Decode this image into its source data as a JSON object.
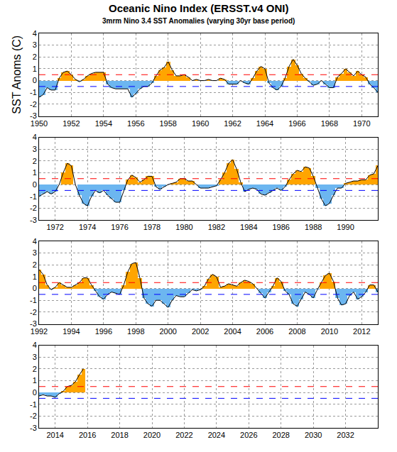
{
  "chart_data": [
    {
      "type": "area",
      "title": "Oceanic Nino Index (ERSST.v4 ONI)",
      "subtitle": "3mrm Nino 3.4 SST Anomalies (varying 30yr base period)",
      "y_label": "SST Anoms (C)",
      "x": [
        1950,
        1950.25,
        1950.5,
        1950.75,
        1951,
        1951.25,
        1951.5,
        1951.75,
        1952,
        1952.25,
        1952.5,
        1952.75,
        1953,
        1953.25,
        1953.5,
        1953.75,
        1954,
        1954.25,
        1954.5,
        1954.75,
        1955,
        1955.25,
        1955.5,
        1955.75,
        1956,
        1956.25,
        1956.5,
        1956.75,
        1957,
        1957.25,
        1957.5,
        1957.75,
        1958,
        1958.25,
        1958.5,
        1958.75,
        1959,
        1959.25,
        1959.5,
        1959.75,
        1960,
        1960.25,
        1960.5,
        1960.75,
        1961,
        1961.25,
        1961.5,
        1961.75,
        1962,
        1962.25,
        1962.5,
        1962.75,
        1963,
        1963.25,
        1963.5,
        1963.75,
        1964,
        1964.25,
        1964.5,
        1964.75,
        1965,
        1965.25,
        1965.5,
        1965.75,
        1966,
        1966.25,
        1966.5,
        1966.75,
        1967,
        1967.25,
        1967.5,
        1967.75,
        1968,
        1968.25,
        1968.5,
        1968.75,
        1969,
        1969.25,
        1969.5,
        1969.75,
        1970,
        1970.25,
        1970.5,
        1970.75,
        1971
      ],
      "values": [
        -1.4,
        -1.2,
        -0.6,
        -0.8,
        -0.8,
        0.2,
        0.7,
        0.8,
        0.5,
        0.1,
        -0.1,
        0.1,
        0.4,
        0.6,
        0.7,
        0.7,
        0.7,
        -0.3,
        -0.6,
        -0.7,
        -0.7,
        -0.7,
        -0.7,
        -1.4,
        -1.1,
        -0.7,
        -0.5,
        -0.5,
        -0.2,
        0.4,
        0.9,
        1.1,
        1.6,
        0.9,
        0.4,
        0.4,
        0.5,
        0.3,
        0.0,
        0.1,
        0.0,
        0.0,
        0.1,
        0.0,
        0.0,
        0.2,
        0.1,
        -0.3,
        -0.3,
        -0.3,
        0.0,
        -0.2,
        -0.3,
        0.2,
        0.8,
        1.2,
        1.0,
        -0.2,
        -0.6,
        -0.8,
        -0.5,
        0.2,
        1.2,
        1.8,
        1.3,
        0.6,
        0.2,
        -0.1,
        -0.4,
        -0.3,
        0.0,
        -0.3,
        -0.6,
        -0.6,
        0.3,
        0.6,
        1.0,
        0.7,
        0.4,
        0.8,
        0.5,
        0.3,
        -0.3,
        -0.6,
        -1.0
      ],
      "color": "#000000",
      "colors": {
        "above": "#ffa500",
        "below": "#6cb6f0"
      },
      "reference_lines": [
        {
          "value": 0.5,
          "color": "#ff0000",
          "line_style": "dash"
        },
        {
          "value": -0.5,
          "color": "#0000ff",
          "line_style": "dash"
        }
      ],
      "xlim": [
        1950,
        1971
      ],
      "xticks": [
        1950,
        1952,
        1954,
        1956,
        1958,
        1960,
        1962,
        1964,
        1966,
        1968,
        1970
      ],
      "ylim": [
        -3,
        4
      ],
      "yticks": [
        -3,
        -2,
        -1,
        0,
        1,
        2,
        3,
        4
      ],
      "grid": true
    },
    {
      "type": "area",
      "x": [
        1971,
        1971.25,
        1971.5,
        1971.75,
        1972,
        1972.25,
        1972.5,
        1972.75,
        1973,
        1973.25,
        1973.5,
        1973.75,
        1974,
        1974.25,
        1974.5,
        1974.75,
        1975,
        1975.25,
        1975.5,
        1975.75,
        1976,
        1976.25,
        1976.5,
        1976.75,
        1977,
        1977.25,
        1977.5,
        1977.75,
        1978,
        1978.25,
        1978.5,
        1978.75,
        1979,
        1979.25,
        1979.5,
        1979.75,
        1980,
        1980.25,
        1980.5,
        1980.75,
        1981,
        1981.25,
        1981.5,
        1981.75,
        1982,
        1982.25,
        1982.5,
        1982.75,
        1983,
        1983.25,
        1983.5,
        1983.75,
        1984,
        1984.25,
        1984.5,
        1984.75,
        1985,
        1985.25,
        1985.5,
        1985.75,
        1986,
        1986.25,
        1986.5,
        1986.75,
        1987,
        1987.25,
        1987.5,
        1987.75,
        1988,
        1988.25,
        1988.5,
        1988.75,
        1989,
        1989.25,
        1989.5,
        1989.75,
        1990,
        1990.25,
        1990.5,
        1990.75,
        1991,
        1991.25,
        1991.5,
        1991.75,
        1992
      ],
      "values": [
        -1.0,
        -0.8,
        -0.6,
        -0.8,
        -0.6,
        0.0,
        1.0,
        1.8,
        1.6,
        0.0,
        -0.9,
        -1.6,
        -1.8,
        -1.0,
        -0.5,
        -0.7,
        -0.5,
        -0.9,
        -1.2,
        -1.5,
        -1.5,
        -0.5,
        0.4,
        0.8,
        0.6,
        0.2,
        0.4,
        0.7,
        0.7,
        -0.2,
        -0.4,
        -0.2,
        0.0,
        0.1,
        0.2,
        0.5,
        0.5,
        0.3,
        0.3,
        0.0,
        -0.3,
        -0.3,
        -0.3,
        -0.2,
        -0.1,
        0.4,
        1.0,
        1.8,
        2.1,
        1.3,
        0.2,
        -0.6,
        -0.4,
        -0.3,
        -0.4,
        -0.8,
        -0.9,
        -0.7,
        -0.5,
        -0.3,
        -0.5,
        -0.2,
        0.4,
        0.9,
        1.2,
        1.1,
        1.5,
        1.4,
        0.7,
        -0.3,
        -1.2,
        -1.8,
        -1.6,
        -0.9,
        -0.3,
        -0.3,
        0.1,
        0.2,
        0.3,
        0.3,
        0.4,
        0.4,
        0.8,
        0.9,
        1.6
      ],
      "color": "#000000",
      "colors": {
        "above": "#ffa500",
        "below": "#6cb6f0"
      },
      "reference_lines": [
        {
          "value": 0.5,
          "color": "#ff0000",
          "line_style": "dash"
        },
        {
          "value": -0.5,
          "color": "#0000ff",
          "line_style": "dash"
        }
      ],
      "xlim": [
        1971,
        1992
      ],
      "xticks": [
        1972,
        1974,
        1976,
        1978,
        1980,
        1982,
        1984,
        1986,
        1988,
        1990
      ],
      "ylim": [
        -3,
        4
      ],
      "yticks": [
        -3,
        -2,
        -1,
        0,
        1,
        2,
        3,
        4
      ],
      "grid": true
    },
    {
      "type": "area",
      "x": [
        1992,
        1992.25,
        1992.5,
        1992.75,
        1993,
        1993.25,
        1993.5,
        1993.75,
        1994,
        1994.25,
        1994.5,
        1994.75,
        1995,
        1995.25,
        1995.5,
        1995.75,
        1996,
        1996.25,
        1996.5,
        1996.75,
        1997,
        1997.25,
        1997.5,
        1997.75,
        1998,
        1998.25,
        1998.5,
        1998.75,
        1999,
        1999.25,
        1999.5,
        1999.75,
        2000,
        2000.25,
        2000.5,
        2000.75,
        2001,
        2001.25,
        2001.5,
        2001.75,
        2002,
        2002.25,
        2002.5,
        2002.75,
        2003,
        2003.25,
        2003.5,
        2003.75,
        2004,
        2004.25,
        2004.5,
        2004.75,
        2005,
        2005.25,
        2005.5,
        2005.75,
        2006,
        2006.25,
        2006.5,
        2006.75,
        2007,
        2007.25,
        2007.5,
        2007.75,
        2008,
        2008.25,
        2008.5,
        2008.75,
        2009,
        2009.25,
        2009.5,
        2009.75,
        2010,
        2010.25,
        2010.5,
        2010.75,
        2011,
        2011.25,
        2011.5,
        2011.75,
        2012,
        2012.25,
        2012.5,
        2012.75,
        2013
      ],
      "values": [
        1.6,
        1.2,
        0.3,
        -0.1,
        0.1,
        0.5,
        0.3,
        0.1,
        0.1,
        0.3,
        0.5,
        0.9,
        0.9,
        0.3,
        -0.2,
        -0.7,
        -0.9,
        -0.5,
        -0.3,
        -0.4,
        -0.5,
        0.3,
        1.4,
        2.1,
        2.2,
        0.9,
        -0.8,
        -1.3,
        -1.5,
        -1.0,
        -1.0,
        -1.3,
        -1.6,
        -1.0,
        -0.6,
        -0.7,
        -0.7,
        -0.4,
        -0.1,
        -0.2,
        -0.1,
        0.2,
        0.8,
        1.2,
        1.0,
        0.1,
        0.2,
        0.4,
        0.3,
        0.2,
        0.5,
        0.7,
        0.6,
        0.4,
        0.0,
        -0.4,
        -0.8,
        -0.3,
        0.2,
        0.9,
        0.6,
        -0.2,
        -0.5,
        -1.3,
        -1.5,
        -0.9,
        -0.3,
        -0.5,
        -0.8,
        -0.1,
        0.5,
        1.1,
        1.3,
        0.6,
        -0.8,
        -1.4,
        -1.3,
        -0.6,
        -0.3,
        -0.9,
        -0.7,
        -0.3,
        0.3,
        0.3,
        -0.3
      ],
      "color": "#000000",
      "colors": {
        "above": "#ffa500",
        "below": "#6cb6f0"
      },
      "reference_lines": [
        {
          "value": 0.5,
          "color": "#ff0000",
          "line_style": "dash"
        },
        {
          "value": -0.5,
          "color": "#0000ff",
          "line_style": "dash"
        }
      ],
      "xlim": [
        1992,
        2013
      ],
      "xticks": [
        1992,
        1994,
        1996,
        1998,
        2000,
        2002,
        2004,
        2006,
        2008,
        2010,
        2012
      ],
      "ylim": [
        -3,
        4
      ],
      "yticks": [
        -3,
        -2,
        -1,
        0,
        1,
        2,
        3,
        4
      ],
      "grid": true
    },
    {
      "type": "area",
      "x": [
        2013,
        2013.25,
        2013.5,
        2013.75,
        2014,
        2014.25,
        2014.5,
        2014.75,
        2015,
        2015.25,
        2015.5,
        2015.75
      ],
      "values": [
        -0.3,
        -0.2,
        -0.3,
        -0.3,
        -0.4,
        -0.1,
        0.1,
        0.5,
        0.6,
        0.9,
        1.5,
        2.0
      ],
      "color": "#000000",
      "colors": {
        "above": "#ffa500",
        "below": "#6cb6f0"
      },
      "reference_lines": [
        {
          "value": 0.5,
          "color": "#ff0000",
          "line_style": "dash"
        },
        {
          "value": -0.5,
          "color": "#0000ff",
          "line_style": "dash"
        }
      ],
      "xlim": [
        2013,
        2034
      ],
      "xticks": [
        2014,
        2016,
        2018,
        2020,
        2022,
        2024,
        2026,
        2028,
        2030,
        2032
      ],
      "ylim": [
        -3,
        4
      ],
      "yticks": [
        -3,
        -2,
        -1,
        0,
        1,
        2,
        3,
        4
      ],
      "grid": true
    }
  ]
}
